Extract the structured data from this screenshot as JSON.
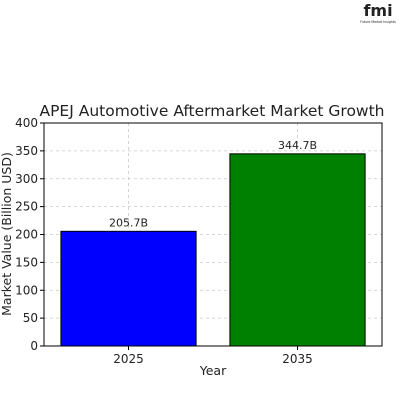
{
  "logo": {
    "wordmark": "fmi",
    "tagline": "Future Market Insights",
    "colors": {
      "f": "#1f3c88",
      "m": "#1f3c88",
      "i": "#e3342f"
    }
  },
  "chart_data": {
    "type": "bar",
    "title": "APEJ Automotive Aftermarket Market Growth",
    "xlabel": "Year",
    "ylabel": "Market Value (Billion USD)",
    "categories": [
      "2025",
      "2035"
    ],
    "values": [
      205.7,
      344.7
    ],
    "data_labels": [
      "205.7B",
      "344.7B"
    ],
    "bar_colors": [
      "#0000ff",
      "#008000"
    ],
    "ylim": [
      0,
      400
    ],
    "yticks": [
      0,
      50,
      100,
      150,
      200,
      250,
      300,
      350,
      400
    ],
    "grid": true,
    "grid_style": "dashed",
    "legend": "none"
  }
}
